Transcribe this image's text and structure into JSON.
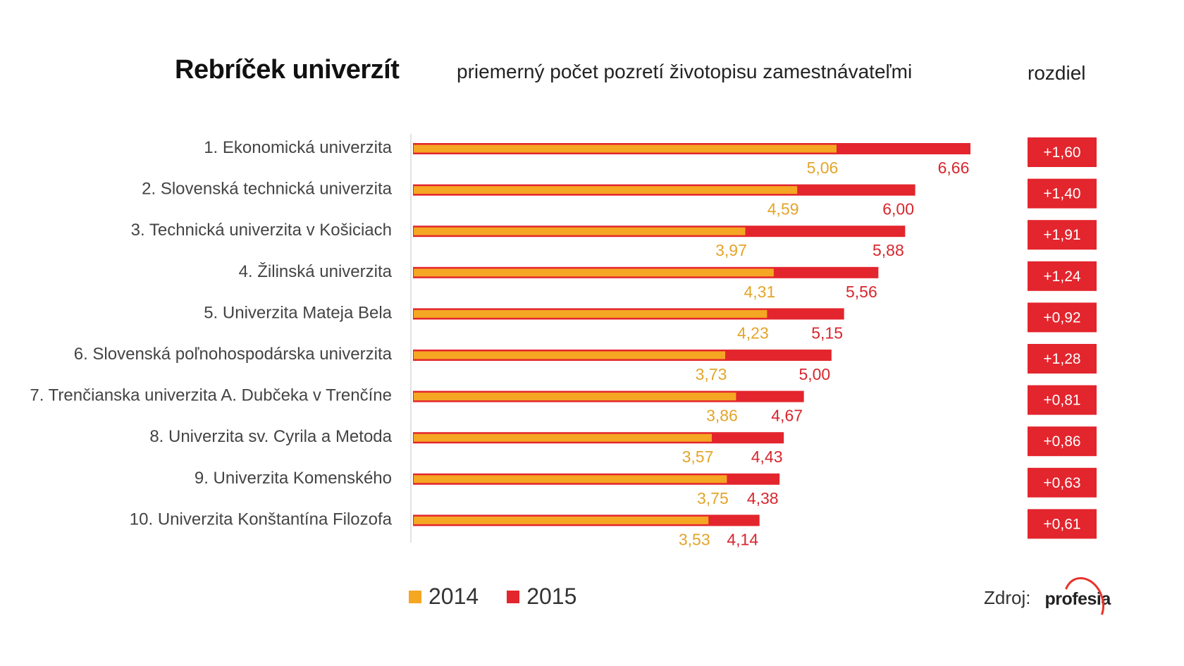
{
  "header": {
    "title": "Rebríček univerzít",
    "subtitle": "priemerný počet pozretí životopisu zamestnávateľmi",
    "diff_label": "rozdiel"
  },
  "legend": [
    {
      "label": "2014",
      "color": "#f5a623"
    },
    {
      "label": "2015",
      "color": "#e3252d"
    }
  ],
  "source": {
    "label": "Zdroj:",
    "brand": "profesia"
  },
  "colors": {
    "bar_2014": "#f5a623",
    "bar_2015": "#e3252d",
    "label_2014": "#e3a52a",
    "label_2015": "#d8262d",
    "badge": "#e3252d"
  },
  "chart_data": {
    "type": "bar",
    "orientation": "horizontal",
    "categories": [
      "1. Ekonomická univerzita",
      "2. Slovenská technická univerzita",
      "3. Technická univerzita v Košiciach",
      "4. Žilinská univerzita",
      "5. Univerzita Mateja Bela",
      "6. Slovenská poľnohospodárska univerzita",
      "7. Trenčianska univerzita A. Dubčeka v Trenčíne",
      "8. Univerzita sv. Cyrila a Metoda",
      "9. Univerzita Komenského",
      "10. Univerzita Konštantína Filozofa"
    ],
    "series": [
      {
        "name": "2014",
        "values": [
          5.06,
          4.59,
          3.97,
          4.31,
          4.23,
          3.73,
          3.86,
          3.57,
          3.75,
          3.53
        ],
        "labels": [
          "5,06",
          "4,59",
          "3,97",
          "4,31",
          "4,23",
          "3,73",
          "3,86",
          "3,57",
          "3,75",
          "3,53"
        ]
      },
      {
        "name": "2015",
        "values": [
          6.66,
          6.0,
          5.88,
          5.56,
          5.15,
          5.0,
          4.67,
          4.43,
          4.38,
          4.14
        ],
        "labels": [
          "6,66",
          "6,00",
          "5,88",
          "5,56",
          "5,15",
          "5,00",
          "4,67",
          "4,43",
          "4,38",
          "4,14"
        ]
      }
    ],
    "differences": [
      "+1,60",
      "+1,40",
      "+1,91",
      "+1,24",
      "+0,92",
      "+1,28",
      "+0,81",
      "+0,86",
      "+0,63",
      "+0,61"
    ],
    "xlim": [
      0,
      6.66
    ],
    "legend_position": "bottom-left",
    "grid": false
  }
}
